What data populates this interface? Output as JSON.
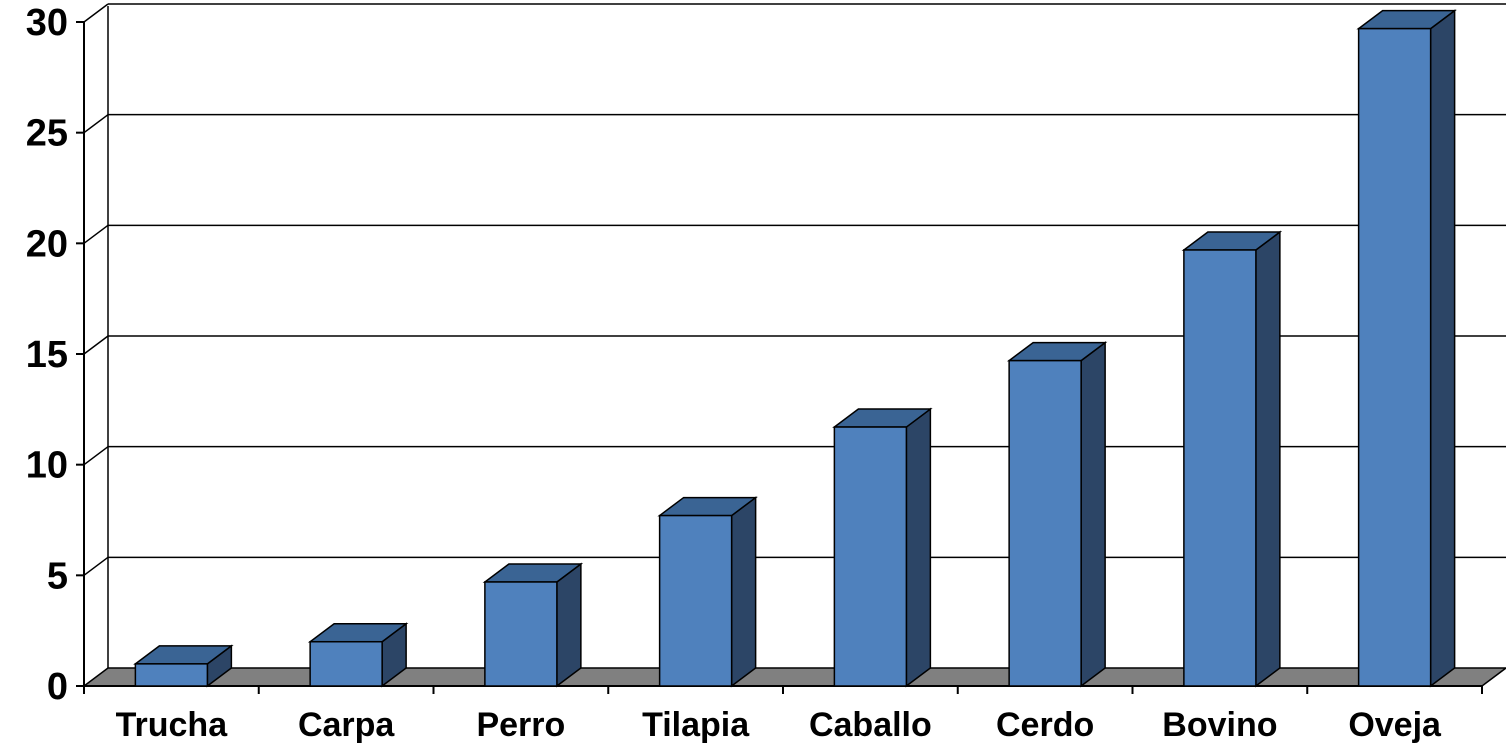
{
  "chart_data": {
    "type": "bar",
    "style": "3d-column",
    "categories": [
      "Trucha",
      "Carpa",
      "Perro",
      "Tilapia",
      "Caballo",
      "Cerdo",
      "Bovino",
      "Oveja"
    ],
    "values": [
      1,
      2,
      4.7,
      7.7,
      11.7,
      14.7,
      19.7,
      29.7
    ],
    "ylim": [
      0,
      30
    ],
    "yticks": [
      "0",
      "5",
      "10",
      "15",
      "20",
      "25",
      "30"
    ],
    "title": "",
    "xlabel": "",
    "ylabel": "",
    "grid": true,
    "legend": "none",
    "colors": {
      "bar_front": "#4f81bd",
      "bar_side": "#2c4566",
      "bar_top": "#3a6494",
      "floor": "#808080"
    }
  }
}
